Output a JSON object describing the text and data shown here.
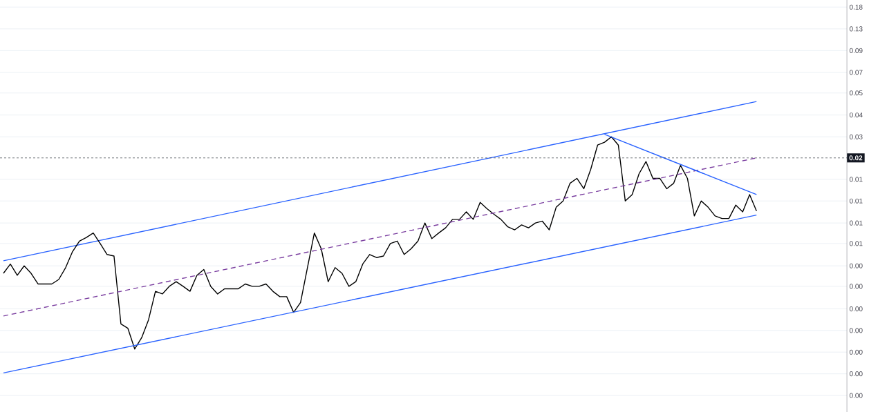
{
  "chart_data": {
    "type": "line",
    "log": "y",
    "grid": "y",
    "tick_labels": "y",
    "categories": [
      null,
      null,
      null,
      null,
      null,
      null,
      null,
      null,
      null,
      null,
      null,
      null,
      null,
      null,
      null,
      null,
      null,
      null,
      null,
      null,
      null,
      null,
      null,
      null,
      null,
      null,
      null,
      null,
      null,
      null,
      null,
      null,
      null,
      null,
      null,
      null,
      null,
      null,
      null,
      null,
      null,
      null,
      null,
      null,
      null,
      null,
      null,
      null,
      null,
      null,
      null,
      null,
      null,
      null,
      null,
      null,
      null,
      null,
      null,
      null,
      null,
      null,
      null,
      null,
      null,
      null,
      null,
      null,
      null,
      null,
      null,
      null,
      null,
      null,
      null,
      null,
      null,
      null,
      null,
      null,
      null,
      null,
      null,
      null,
      null,
      null,
      null,
      null,
      null,
      null,
      null,
      null,
      null,
      null,
      null,
      null,
      null,
      null,
      null,
      null,
      null,
      null,
      null,
      null,
      null,
      null,
      null,
      null,
      null,
      null
    ],
    "ylim": [
      0.00043,
      0.2
    ],
    "yticks": [
      {
        "value": 0.18,
        "label": "0.18"
      },
      {
        "value": 0.13,
        "label": "0.13"
      },
      {
        "value": 0.094,
        "label": "0.09"
      },
      {
        "value": 0.068,
        "label": "0.07"
      },
      {
        "value": 0.05,
        "label": "0.05"
      },
      {
        "value": 0.036,
        "label": "0.04"
      },
      {
        "value": 0.026,
        "label": "0.03"
      },
      {
        "value": 0.0138,
        "label": "0.01"
      },
      {
        "value": 0.01,
        "label": "0.01"
      },
      {
        "value": 0.0072,
        "label": "0.01"
      },
      {
        "value": 0.0053,
        "label": "0.01"
      },
      {
        "value": 0.0038,
        "label": "0.00"
      },
      {
        "value": 0.0028,
        "label": "0.00"
      },
      {
        "value": 0.002,
        "label": "0.00"
      },
      {
        "value": 0.00145,
        "label": "0.00"
      },
      {
        "value": 0.00105,
        "label": "0.00"
      },
      {
        "value": 0.00076,
        "label": "0.00"
      },
      {
        "value": 0.00055,
        "label": "0.00"
      }
    ],
    "ref_lines": [
      {
        "axis": "y",
        "value": 0.019,
        "label": "0.02",
        "color": "#131722",
        "line_style": "dashed"
      }
    ],
    "series": [
      {
        "color": "#2962ff",
        "values": [
          0.0041,
          null,
          null,
          null,
          null,
          null,
          null,
          null,
          null,
          null,
          null,
          null,
          null,
          null,
          null,
          null,
          null,
          null,
          null,
          null,
          null,
          null,
          null,
          null,
          null,
          null,
          null,
          null,
          null,
          null,
          null,
          null,
          null,
          null,
          null,
          null,
          null,
          null,
          null,
          null,
          null,
          null,
          null,
          null,
          null,
          null,
          null,
          null,
          null,
          null,
          null,
          null,
          null,
          null,
          null,
          null,
          null,
          null,
          null,
          null,
          null,
          null,
          null,
          null,
          null,
          null,
          null,
          null,
          null,
          null,
          null,
          null,
          null,
          null,
          null,
          null,
          null,
          null,
          null,
          null,
          null,
          null,
          null,
          null,
          null,
          null,
          null,
          null,
          null,
          null,
          null,
          null,
          null,
          null,
          null,
          null,
          null,
          null,
          null,
          null,
          null,
          null,
          null,
          null,
          null,
          null,
          null,
          null,
          null,
          0.044
        ]
      },
      {
        "color": "#000000",
        "values": [
          0.0034,
          0.0039,
          0.0033,
          0.0038,
          0.0034,
          0.0029,
          0.0029,
          0.0029,
          0.0031,
          0.0037,
          0.0047,
          0.0055,
          0.0058,
          0.0062,
          0.0053,
          0.0045,
          0.0044,
          0.0016,
          0.0015,
          0.0011,
          0.0013,
          0.0017,
          0.0026,
          0.0025,
          0.0028,
          0.003,
          0.0028,
          0.0026,
          0.0033,
          0.0036,
          0.0028,
          0.0025,
          0.0027,
          0.0027,
          0.0027,
          0.0029,
          0.0028,
          0.0028,
          0.0029,
          0.0026,
          0.0024,
          0.0024,
          0.0019,
          0.0022,
          0.0037,
          0.0062,
          0.0049,
          0.003,
          0.0037,
          0.0034,
          0.0028,
          0.003,
          0.0039,
          0.0045,
          0.0043,
          0.0044,
          0.0053,
          0.0055,
          0.0045,
          0.0049,
          0.0055,
          0.0072,
          0.0057,
          0.0062,
          0.0067,
          0.0076,
          0.0076,
          0.0085,
          0.0076,
          0.0098,
          0.0089,
          0.0082,
          0.0076,
          0.0068,
          0.0065,
          0.007,
          0.0067,
          0.0072,
          0.0074,
          0.0065,
          0.0091,
          0.01,
          0.013,
          0.014,
          0.012,
          0.016,
          0.023,
          0.024,
          0.026,
          0.023,
          0.01,
          0.011,
          0.015,
          0.018,
          0.014,
          0.014,
          0.012,
          0.013,
          0.017,
          0.014,
          0.008,
          0.01,
          0.0091,
          0.008,
          0.0077,
          0.0077,
          0.0094,
          0.0085,
          0.011,
          0.0086
        ]
      },
      {
        "color": "#2962ff",
        "values": [
          0.00077,
          null,
          null,
          null,
          null,
          null,
          null,
          null,
          null,
          null,
          null,
          null,
          null,
          null,
          null,
          null,
          null,
          null,
          null,
          null,
          null,
          null,
          null,
          null,
          null,
          null,
          null,
          null,
          null,
          null,
          null,
          null,
          null,
          null,
          null,
          null,
          null,
          null,
          null,
          null,
          null,
          null,
          null,
          null,
          null,
          null,
          null,
          null,
          null,
          null,
          null,
          null,
          null,
          null,
          null,
          null,
          null,
          null,
          null,
          null,
          null,
          null,
          null,
          null,
          null,
          null,
          null,
          null,
          null,
          null,
          null,
          null,
          null,
          null,
          null,
          null,
          null,
          null,
          null,
          null,
          null,
          null,
          null,
          null,
          null,
          null,
          null,
          null,
          null,
          null,
          null,
          null,
          null,
          null,
          null,
          null,
          null,
          null,
          null,
          null,
          null,
          null,
          null,
          null,
          null,
          null,
          null,
          null,
          null,
          0.0081
        ]
      },
      {
        "color": "#7b3fa0",
        "line_style": "dashed",
        "values": [
          0.0018,
          null,
          null,
          null,
          null,
          null,
          null,
          null,
          null,
          null,
          null,
          null,
          null,
          null,
          null,
          null,
          null,
          null,
          null,
          null,
          null,
          null,
          null,
          null,
          null,
          null,
          null,
          null,
          null,
          null,
          null,
          null,
          null,
          null,
          null,
          null,
          null,
          null,
          null,
          null,
          null,
          null,
          null,
          null,
          null,
          null,
          null,
          null,
          null,
          null,
          null,
          null,
          null,
          null,
          null,
          null,
          null,
          null,
          null,
          null,
          null,
          null,
          null,
          null,
          null,
          null,
          null,
          null,
          null,
          null,
          null,
          null,
          null,
          null,
          null,
          null,
          null,
          null,
          null,
          null,
          null,
          null,
          null,
          null,
          null,
          null,
          null,
          null,
          null,
          null,
          null,
          null,
          null,
          null,
          null,
          null,
          null,
          null,
          null,
          null,
          null,
          null,
          null,
          null,
          null,
          null,
          null,
          null,
          null,
          0.019
        ]
      },
      {
        "color": "#2962ff",
        "values": [
          null,
          null,
          null,
          null,
          null,
          null,
          null,
          null,
          null,
          null,
          null,
          null,
          null,
          null,
          null,
          null,
          null,
          null,
          null,
          null,
          null,
          null,
          null,
          null,
          null,
          null,
          null,
          null,
          null,
          null,
          null,
          null,
          null,
          null,
          null,
          null,
          null,
          null,
          null,
          null,
          null,
          null,
          null,
          null,
          null,
          null,
          null,
          null,
          null,
          null,
          null,
          null,
          null,
          null,
          null,
          null,
          null,
          null,
          null,
          null,
          null,
          null,
          null,
          null,
          null,
          null,
          null,
          null,
          null,
          null,
          null,
          null,
          null,
          null,
          null,
          null,
          null,
          null,
          null,
          null,
          null,
          null,
          null,
          null,
          null,
          null,
          null,
          0.027,
          null,
          null,
          null,
          null,
          null,
          null,
          null,
          null,
          null,
          null,
          null,
          null,
          null,
          null,
          null,
          null,
          null,
          null,
          null,
          null,
          null,
          0.011
        ]
      }
    ]
  }
}
